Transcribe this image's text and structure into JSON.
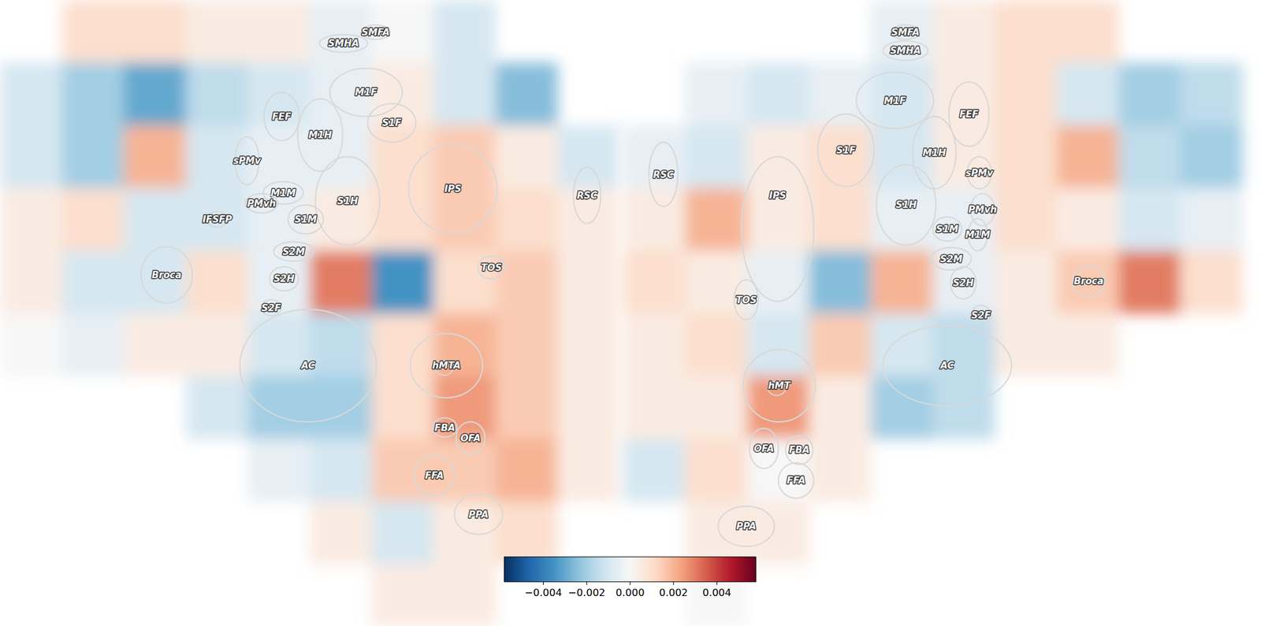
{
  "chart_data": {
    "type": "heatmap",
    "hemispheres": [
      {
        "cells": [
          [
            null,
            0.001,
            0.001,
            0.0005,
            0.0005,
            -0.0005,
            0,
            -0.001,
            null,
            null
          ],
          [
            -0.001,
            -0.002,
            -0.003,
            -0.0015,
            -0.001,
            -0.0005,
            0.0005,
            -0.001,
            -0.0025,
            null
          ],
          [
            -0.001,
            -0.002,
            0.002,
            -0.001,
            -0.0005,
            -0.0005,
            0.001,
            0.0015,
            0.0005,
            -0.001
          ],
          [
            0.0005,
            0.001,
            -0.001,
            -0.001,
            -0.0005,
            0.0005,
            0.001,
            0.0015,
            0.001,
            0.0005
          ],
          [
            0.0005,
            -0.001,
            -0.001,
            0.001,
            -0.0005,
            0.003,
            -0.0035,
            0.001,
            0.0015,
            0.0005
          ],
          [
            0,
            -0.0005,
            0.0005,
            0.0005,
            -0.001,
            -0.0015,
            0.001,
            0.002,
            0.0015,
            0.0005
          ],
          [
            null,
            null,
            null,
            -0.001,
            -0.002,
            -0.002,
            0.001,
            0.0025,
            0.0015,
            0.0005
          ],
          [
            null,
            null,
            null,
            null,
            -0.0005,
            -0.001,
            0.0015,
            0.0015,
            0.002,
            0.0005
          ],
          [
            null,
            null,
            null,
            null,
            null,
            0.0005,
            -0.001,
            0.0005,
            0.001,
            null
          ],
          [
            null,
            null,
            null,
            null,
            null,
            null,
            0.0005,
            0.0005,
            null,
            null
          ]
        ],
        "rois": [
          "SMHA",
          "SMFA",
          "M1F",
          "S1F",
          "FEF",
          "M1H",
          "sPMv",
          "M1M",
          "PMvh",
          "IFSFP",
          "S1H",
          "S1M",
          "S2M",
          "S2H",
          "S2F",
          "IPS",
          "RSC",
          "TOS",
          "Broca",
          "AC",
          "hMTA",
          "FBA",
          "OFA",
          "FFA",
          "PPA"
        ]
      },
      {
        "cells": [
          [
            null,
            null,
            null,
            null,
            -0.0005,
            0.0005,
            0.001,
            0.001,
            null,
            null
          ],
          [
            null,
            -0.0005,
            -0.001,
            -0.0005,
            -0.001,
            0.0005,
            0.001,
            -0.001,
            -0.002,
            -0.0015
          ],
          [
            -0.0005,
            -0.001,
            0.0005,
            0.001,
            -0.001,
            0.0005,
            0.001,
            0.002,
            -0.0015,
            -0.002
          ],
          [
            0.0005,
            0.002,
            0.0005,
            0.001,
            -0.0005,
            -0.0005,
            0.001,
            0.0005,
            -0.001,
            -0.0005
          ],
          [
            0.001,
            0.0005,
            -0.0005,
            -0.0025,
            0.002,
            -0.0005,
            0.0005,
            0.0015,
            0.003,
            0.001
          ],
          [
            0.0005,
            0.001,
            -0.001,
            0.0015,
            -0.001,
            -0.0015,
            0.0005,
            0.0005,
            null,
            null
          ],
          [
            0.0005,
            0.0005,
            0.0025,
            0.0005,
            -0.002,
            -0.0015,
            null,
            null,
            null,
            null
          ],
          [
            -0.001,
            0.001,
            0,
            0.0005,
            null,
            null,
            null,
            null,
            null,
            null
          ],
          [
            null,
            0.0005,
            0.0005,
            null,
            null,
            null,
            null,
            null,
            null,
            null
          ],
          [
            null,
            0,
            null,
            null,
            null,
            null,
            null,
            null,
            null,
            null
          ]
        ],
        "rois": [
          "SMFA",
          "SMHA",
          "M1F",
          "FEF",
          "S1F",
          "M1H",
          "sPMv",
          "RSC",
          "IPS",
          "S1H",
          "PMvh",
          "S1M",
          "M1M",
          "S2M",
          "S2H",
          "S2F",
          "Broca",
          "TOS",
          "AC",
          "hMT",
          "OFA",
          "FBA",
          "FFA",
          "PPA"
        ]
      }
    ],
    "colorbar": {
      "range": [
        -0.0058,
        0.0058
      ],
      "ticks": [
        {
          "value": -0.004,
          "label": "−0.004"
        },
        {
          "value": -0.002,
          "label": "−0.002"
        },
        {
          "value": 0,
          "label": "0.000"
        },
        {
          "value": 0.002,
          "label": "0.002"
        },
        {
          "value": 0.004,
          "label": "0.004"
        }
      ]
    }
  }
}
